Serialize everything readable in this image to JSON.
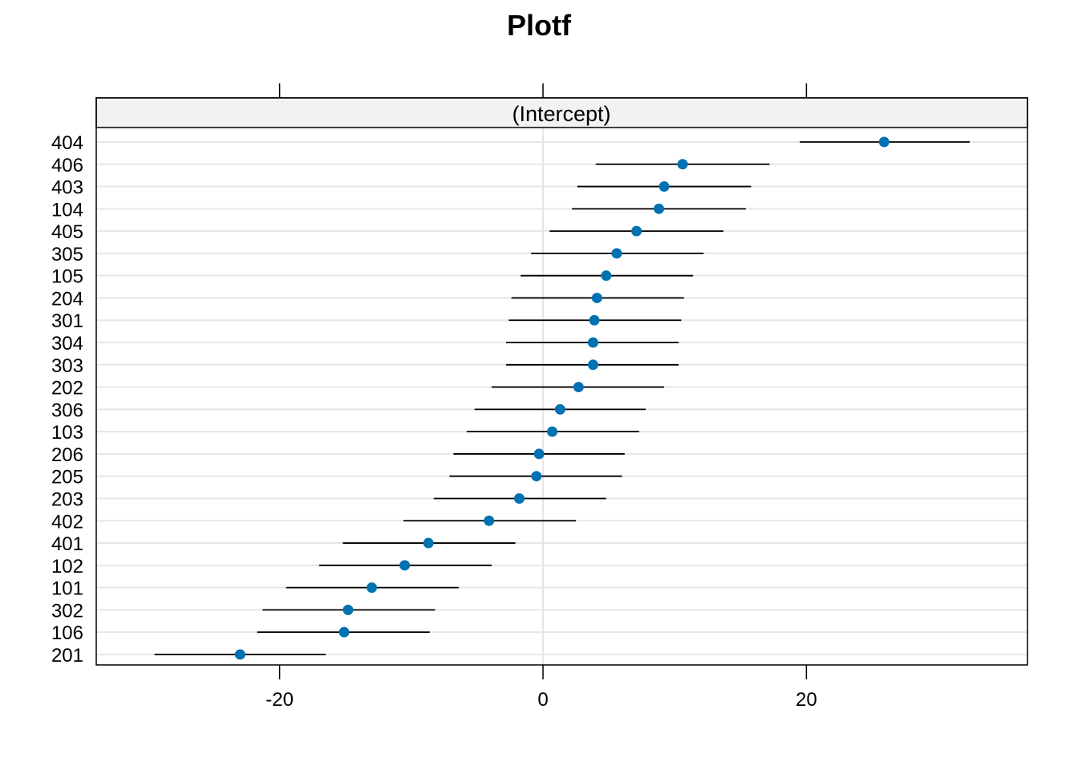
{
  "chart_data": {
    "type": "dotplot",
    "title": "Plotf",
    "panel_label": "(Intercept)",
    "xlim": [
      -34,
      34
    ],
    "x_ticks": [
      -20,
      0,
      20
    ],
    "x_tick_labels": [
      "-20",
      "0",
      "20"
    ],
    "xlabel": "",
    "ylabel": "",
    "grid": true,
    "colors": {
      "point": "#0072B2",
      "interval": "#000000",
      "grid": "#e6e6e6",
      "strip": "#f2f2f2"
    },
    "categories": [
      "404",
      "406",
      "403",
      "104",
      "405",
      "305",
      "105",
      "204",
      "301",
      "304",
      "303",
      "202",
      "306",
      "103",
      "206",
      "205",
      "203",
      "402",
      "401",
      "102",
      "101",
      "302",
      "106",
      "201"
    ],
    "estimate": [
      25.9,
      10.6,
      9.2,
      8.8,
      7.1,
      5.6,
      4.8,
      4.1,
      3.9,
      3.8,
      3.8,
      2.7,
      1.3,
      0.7,
      -0.3,
      -0.5,
      -1.8,
      -4.1,
      -8.7,
      -10.5,
      -13.0,
      -14.8,
      -15.1,
      -23.0
    ],
    "lower": [
      19.5,
      4.0,
      2.6,
      2.2,
      0.5,
      -0.9,
      -1.7,
      -2.4,
      -2.6,
      -2.8,
      -2.8,
      -3.9,
      -5.2,
      -5.8,
      -6.8,
      -7.1,
      -8.3,
      -10.6,
      -15.2,
      -17.0,
      -19.5,
      -21.3,
      -21.7,
      -29.5
    ],
    "upper": [
      32.4,
      17.2,
      15.8,
      15.4,
      13.7,
      12.2,
      11.4,
      10.7,
      10.5,
      10.3,
      10.3,
      9.2,
      7.8,
      7.3,
      6.2,
      6.0,
      4.8,
      2.5,
      -2.1,
      -3.9,
      -6.4,
      -8.2,
      -8.6,
      -16.5
    ]
  }
}
